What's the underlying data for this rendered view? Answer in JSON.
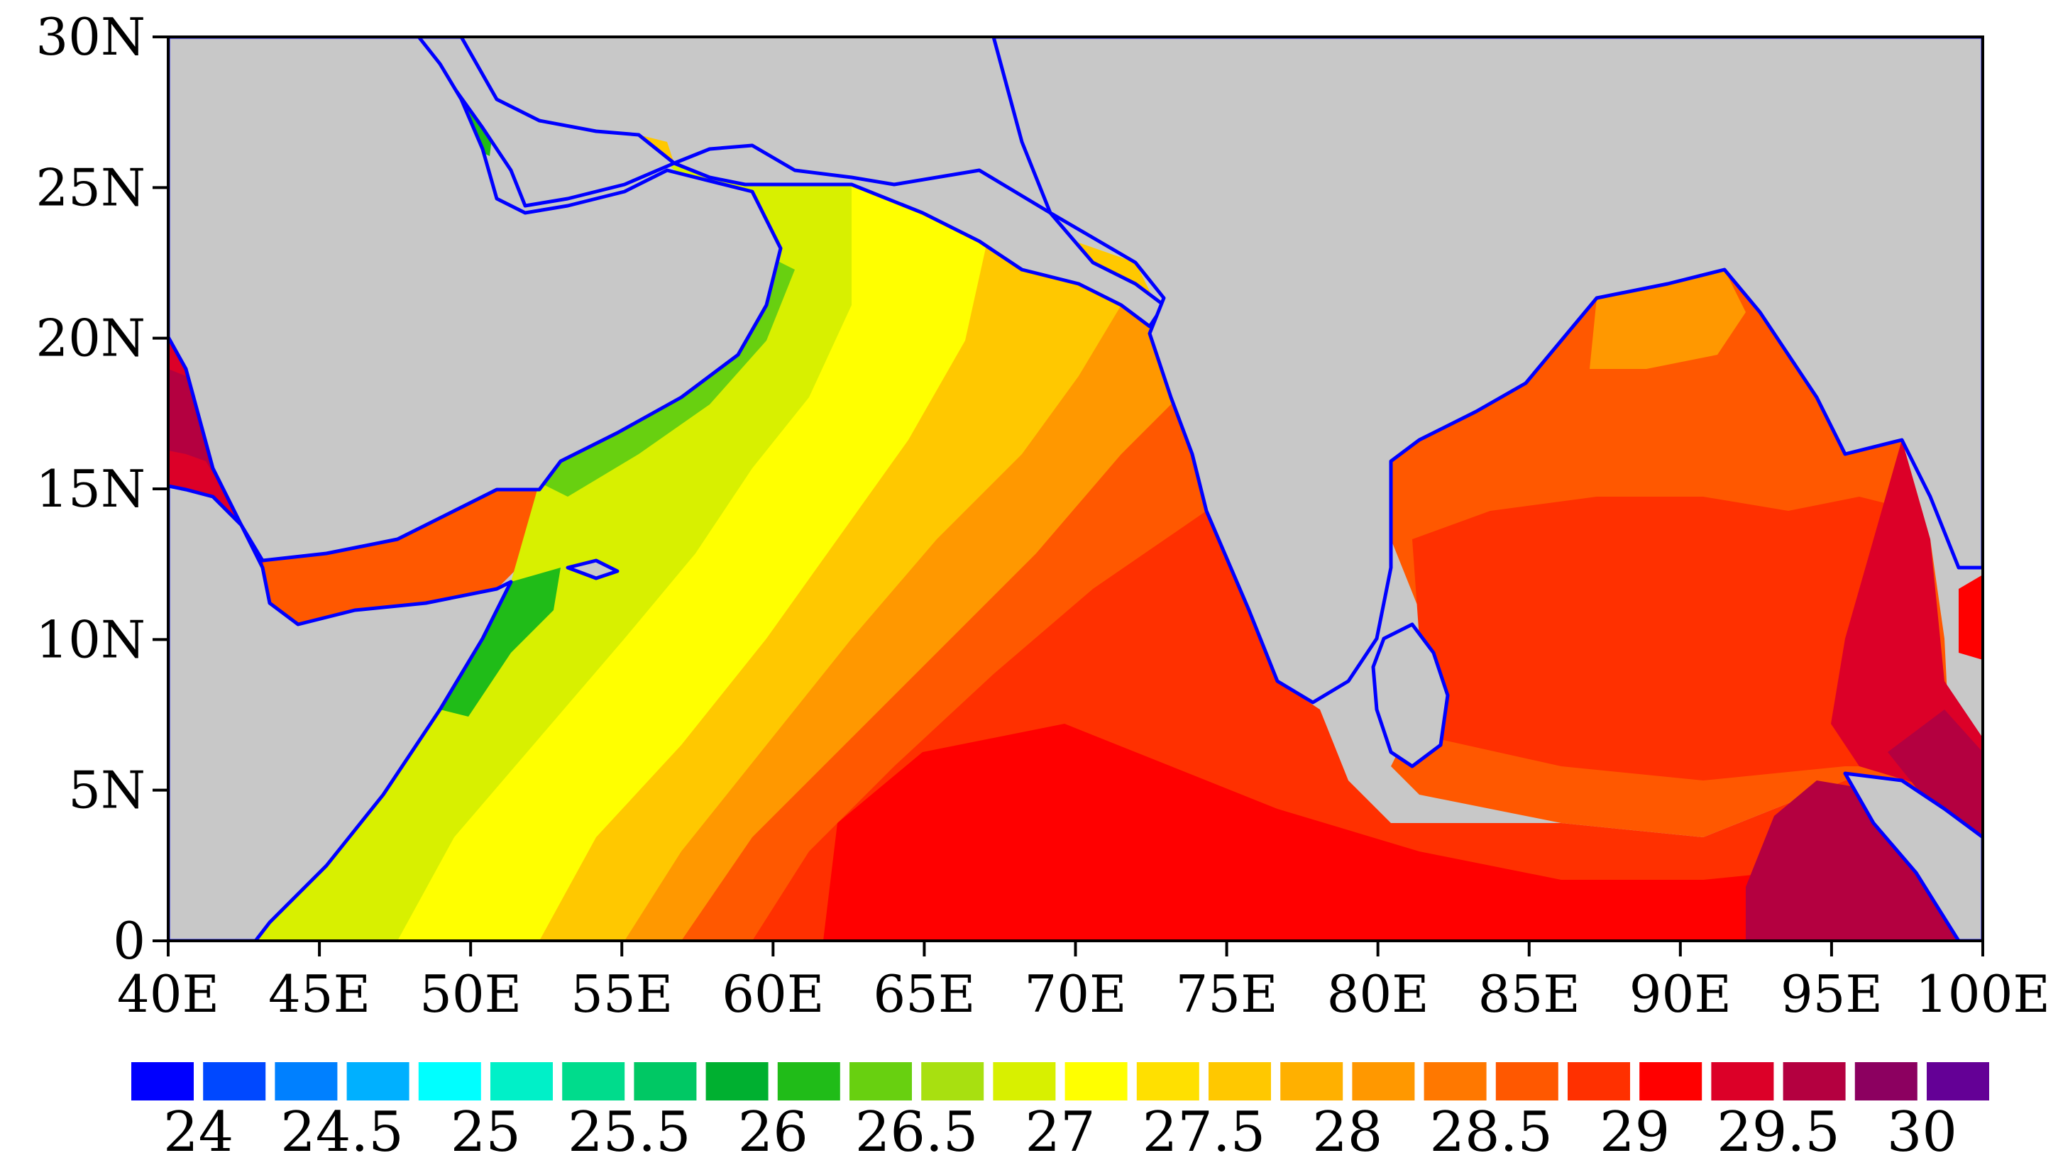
{
  "map": {
    "type": "filled-contour-map",
    "lon_range": [
      40,
      100
    ],
    "lat_range": [
      0,
      30
    ],
    "land_color": "#C8C8C8",
    "coast_color": "#0000FF",
    "x_ticks": [
      {
        "lon": 40,
        "label": "40E"
      },
      {
        "lon": 45,
        "label": "45E"
      },
      {
        "lon": 50,
        "label": "50E"
      },
      {
        "lon": 55,
        "label": "55E"
      },
      {
        "lon": 60,
        "label": "60E"
      },
      {
        "lon": 65,
        "label": "65E"
      },
      {
        "lon": 70,
        "label": "70E"
      },
      {
        "lon": 75,
        "label": "75E"
      },
      {
        "lon": 80,
        "label": "80E"
      },
      {
        "lon": 85,
        "label": "85E"
      },
      {
        "lon": 90,
        "label": "90E"
      },
      {
        "lon": 95,
        "label": "95E"
      },
      {
        "lon": 100,
        "label": "100E"
      }
    ],
    "y_ticks": [
      {
        "lat": 0,
        "label": "0"
      },
      {
        "lat": 5,
        "label": "5N"
      },
      {
        "lat": 10,
        "label": "10N"
      },
      {
        "lat": 15,
        "label": "15N"
      },
      {
        "lat": 20,
        "label": "20N"
      },
      {
        "lat": 25,
        "label": "25N"
      },
      {
        "lat": 30,
        "label": "30N"
      }
    ]
  },
  "colorbar": {
    "colors": [
      "#0000FF",
      "#0048FF",
      "#0080FF",
      "#00B0FF",
      "#00FFFF",
      "#00F0C8",
      "#00DC8C",
      "#00C864",
      "#00B030",
      "#20BC18",
      "#68D010",
      "#A8E010",
      "#D8F000",
      "#FFFF00",
      "#FFE000",
      "#FFC800",
      "#FFB000",
      "#FF9800",
      "#FF7800",
      "#FF5800",
      "#FF3000",
      "#FF0000",
      "#DC0028",
      "#B40040",
      "#8C0060",
      "#640096"
    ],
    "labels": [
      "24",
      "24.5",
      "25",
      "25.5",
      "26",
      "26.5",
      "27",
      "27.5",
      "28",
      "28.5",
      "29",
      "29.5",
      "30"
    ]
  }
}
